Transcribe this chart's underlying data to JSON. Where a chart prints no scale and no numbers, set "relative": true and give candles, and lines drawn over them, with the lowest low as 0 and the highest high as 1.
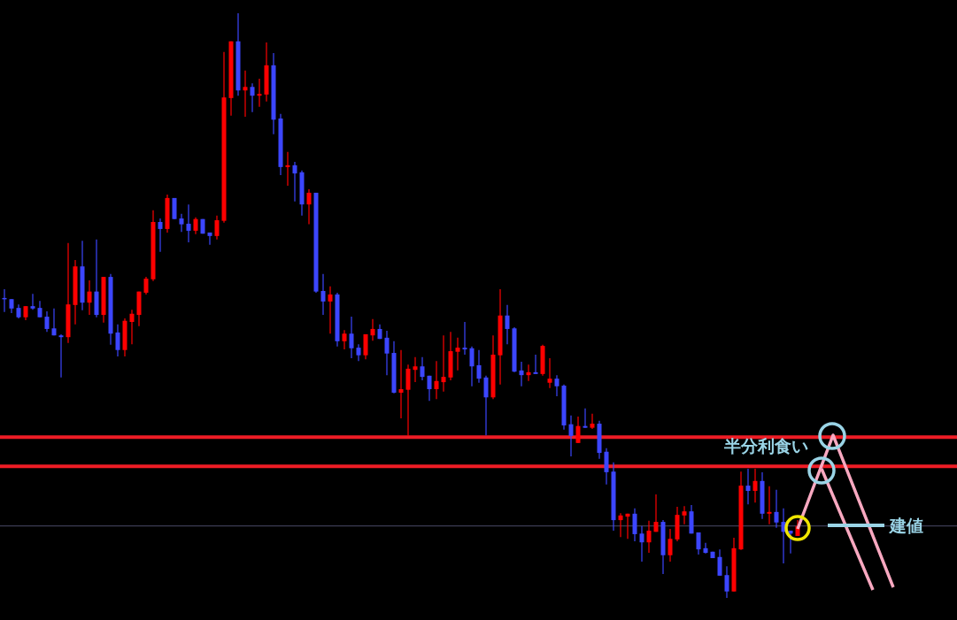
{
  "chart_data": {
    "type": "candlestick",
    "relative": true,
    "categories": [
      null,
      null,
      null,
      null,
      null,
      null,
      null,
      null,
      null,
      null,
      null,
      null,
      null,
      null,
      null,
      null,
      null,
      null,
      null,
      null,
      null,
      null,
      null,
      null,
      null,
      null,
      null,
      null,
      null,
      null,
      null,
      null,
      null,
      null,
      null,
      null,
      null,
      null,
      null,
      null,
      null,
      null,
      null,
      null,
      null,
      null,
      null,
      null,
      null,
      null,
      null,
      null,
      null,
      null,
      null,
      null,
      null,
      null,
      null,
      null,
      null,
      null,
      null,
      null,
      null,
      null,
      null,
      null,
      null,
      null,
      null,
      null,
      null,
      null,
      null,
      null,
      null,
      null,
      null,
      null,
      null,
      null,
      null,
      null,
      null,
      null,
      null,
      null,
      null,
      null,
      null,
      null,
      null,
      null,
      null,
      null,
      null,
      null,
      null,
      null,
      null,
      null,
      null,
      null,
      null,
      null,
      null,
      null,
      null,
      null,
      null,
      null,
      null
    ],
    "ohlc": [
      [
        0.513,
        0.528,
        0.489,
        0.511
      ],
      [
        0.511,
        0.511,
        0.487,
        0.495
      ],
      [
        0.496,
        0.502,
        0.478,
        0.48
      ],
      [
        0.48,
        0.499,
        0.475,
        0.499
      ],
      [
        0.499,
        0.52,
        0.493,
        0.495
      ],
      [
        0.496,
        0.508,
        0.48,
        0.48
      ],
      [
        0.481,
        0.49,
        0.455,
        0.46
      ],
      [
        0.461,
        0.495,
        0.449,
        0.449
      ],
      [
        0.449,
        0.451,
        0.377,
        0.446
      ],
      [
        0.446,
        0.607,
        0.436,
        0.502
      ],
      [
        0.501,
        0.578,
        0.468,
        0.567
      ],
      [
        0.567,
        0.611,
        0.492,
        0.505
      ],
      [
        0.505,
        0.543,
        0.484,
        0.524
      ],
      [
        0.524,
        0.613,
        0.48,
        0.484
      ],
      [
        0.484,
        0.549,
        0.471,
        0.549
      ],
      [
        0.549,
        0.554,
        0.433,
        0.452
      ],
      [
        0.454,
        0.468,
        0.413,
        0.424
      ],
      [
        0.424,
        0.478,
        0.413,
        0.474
      ],
      [
        0.472,
        0.493,
        0.434,
        0.486
      ],
      [
        0.484,
        0.524,
        0.465,
        0.524
      ],
      [
        0.522,
        0.549,
        0.519,
        0.546
      ],
      [
        0.545,
        0.663,
        0.542,
        0.643
      ],
      [
        0.643,
        0.649,
        0.592,
        0.631
      ],
      [
        0.631,
        0.69,
        0.625,
        0.684
      ],
      [
        0.684,
        0.684,
        0.648,
        0.648
      ],
      [
        0.649,
        0.657,
        0.626,
        0.639
      ],
      [
        0.64,
        0.673,
        0.608,
        0.628
      ],
      [
        0.628,
        0.651,
        0.622,
        0.648
      ],
      [
        0.648,
        0.648,
        0.623,
        0.623
      ],
      [
        0.625,
        0.625,
        0.604,
        0.619
      ],
      [
        0.619,
        0.654,
        0.613,
        0.646
      ],
      [
        0.645,
        0.934,
        0.642,
        0.856
      ],
      [
        0.855,
        0.952,
        0.825,
        0.952
      ],
      [
        0.952,
        1,
        0.859,
        0.868
      ],
      [
        0.868,
        0.902,
        0.823,
        0.874
      ],
      [
        0.874,
        0.88,
        0.831,
        0.859
      ],
      [
        0.859,
        0.888,
        0.84,
        0.862
      ],
      [
        0.861,
        0.95,
        0.849,
        0.911
      ],
      [
        0.911,
        0.932,
        0.793,
        0.818
      ],
      [
        0.82,
        0.828,
        0.723,
        0.737
      ],
      [
        0.737,
        0.763,
        0.705,
        0.74
      ],
      [
        0.74,
        0.746,
        0.678,
        0.726
      ],
      [
        0.728,
        0.731,
        0.654,
        0.673
      ],
      [
        0.673,
        0.699,
        0.639,
        0.693
      ],
      [
        0.693,
        0.693,
        0.522,
        0.524
      ],
      [
        0.525,
        0.554,
        0.484,
        0.507
      ],
      [
        0.507,
        0.533,
        0.452,
        0.519
      ],
      [
        0.519,
        0.522,
        0.43,
        0.439
      ],
      [
        0.439,
        0.458,
        0.425,
        0.452
      ],
      [
        0.452,
        0.481,
        0.41,
        0.427
      ],
      [
        0.428,
        0.434,
        0.405,
        0.415
      ],
      [
        0.415,
        0.451,
        0.408,
        0.451
      ],
      [
        0.449,
        0.477,
        0.44,
        0.46
      ],
      [
        0.46,
        0.468,
        0.443,
        0.443
      ],
      [
        0.445,
        0.457,
        0.381,
        0.418
      ],
      [
        0.419,
        0.439,
        0.35,
        0.351
      ],
      [
        0.351,
        0.424,
        0.307,
        0.357
      ],
      [
        0.356,
        0.399,
        0.277,
        0.392
      ],
      [
        0.39,
        0.412,
        0.369,
        0.396
      ],
      [
        0.396,
        0.412,
        0.372,
        0.378
      ],
      [
        0.38,
        0.38,
        0.337,
        0.357
      ],
      [
        0.357,
        0.405,
        0.34,
        0.371
      ],
      [
        0.369,
        0.449,
        0.353,
        0.378
      ],
      [
        0.377,
        0.455,
        0.372,
        0.422
      ],
      [
        0.421,
        0.445,
        0.389,
        0.428
      ],
      [
        0.428,
        0.472,
        0.416,
        0.425
      ],
      [
        0.427,
        0.43,
        0.362,
        0.396
      ],
      [
        0.398,
        0.424,
        0.368,
        0.375
      ],
      [
        0.377,
        0.38,
        0.278,
        0.343
      ],
      [
        0.343,
        0.449,
        0.34,
        0.416
      ],
      [
        0.415,
        0.528,
        0.365,
        0.483
      ],
      [
        0.483,
        0.501,
        0.434,
        0.46
      ],
      [
        0.461,
        0.463,
        0.386,
        0.387
      ],
      [
        0.389,
        0.404,
        0.362,
        0.381
      ],
      [
        0.381,
        0.399,
        0.371,
        0.386
      ],
      [
        0.386,
        0.416,
        0.383,
        0.383
      ],
      [
        0.383,
        0.433,
        0.38,
        0.431
      ],
      [
        0.368,
        0.41,
        0.359,
        0.375
      ],
      [
        0.375,
        0.381,
        0.345,
        0.362
      ],
      [
        0.363,
        0.365,
        0.288,
        0.295
      ],
      [
        0.297,
        0.312,
        0.242,
        0.277
      ],
      [
        0.265,
        0.31,
        0.265,
        0.294
      ],
      [
        0.294,
        0.324,
        0.291,
        0.291
      ],
      [
        0.291,
        0.315,
        0.289,
        0.298
      ],
      [
        0.298,
        0.303,
        0.238,
        0.248
      ],
      [
        0.25,
        0.256,
        0.194,
        0.215
      ],
      [
        0.216,
        0.232,
        0.115,
        0.133
      ],
      [
        0.133,
        0.145,
        0.104,
        0.141
      ],
      [
        0.139,
        0.144,
        0.101,
        0.144
      ],
      [
        0.144,
        0.153,
        0.097,
        0.109
      ],
      [
        0.11,
        0.123,
        0.062,
        0.095
      ],
      [
        0.095,
        0.132,
        0.077,
        0.115
      ],
      [
        0.113,
        0.177,
        0.113,
        0.13
      ],
      [
        0.13,
        0.133,
        0.041,
        0.073
      ],
      [
        0.073,
        0.118,
        0.062,
        0.101
      ],
      [
        0.1,
        0.156,
        0.097,
        0.142
      ],
      [
        0.141,
        0.157,
        0.126,
        0.148
      ],
      [
        0.148,
        0.159,
        0.11,
        0.11
      ],
      [
        0.112,
        0.112,
        0.074,
        0.083
      ],
      [
        0.085,
        0.094,
        0.076,
        0.077
      ],
      [
        0.079,
        0.079,
        0.068,
        0.068
      ],
      [
        0.07,
        0.083,
        0.038,
        0.038
      ],
      [
        0.039,
        0.054,
        0,
        0.011
      ],
      [
        0.011,
        0.103,
        0.011,
        0.085
      ],
      [
        0.083,
        0.216,
        0.082,
        0.192
      ],
      [
        0.192,
        0.221,
        0.16,
        0.183
      ],
      [
        0.183,
        0.221,
        0.163,
        0.2
      ],
      [
        0.2,
        0.215,
        0.135,
        0.144
      ],
      [
        0.144,
        0.191,
        0.126,
        0.147
      ],
      [
        0.147,
        0.185,
        0.12,
        0.129
      ],
      [
        0.13,
        0.153,
        0.059,
        0.113
      ],
      [
        0.115,
        0.115,
        0.076,
        0.11
      ],
      [
        0.106,
        0.133,
        0.106,
        0.123
      ]
    ],
    "colors": [
      "#3c46ff",
      "#3c46ff",
      "#3c46ff",
      "#ff0000",
      "#3c46ff",
      "#3c46ff",
      "#3c46ff",
      "#3c46ff",
      "#3c46ff",
      "#ff0000",
      "#ff0000",
      "#3c46ff",
      "#ff0000",
      "#3c46ff",
      "#ff0000",
      "#3c46ff",
      "#3c46ff",
      "#ff0000",
      "#ff0000",
      "#ff0000",
      "#ff0000",
      "#ff0000",
      "#3c46ff",
      "#ff0000",
      "#3c46ff",
      "#3c46ff",
      "#3c46ff",
      "#ff0000",
      "#3c46ff",
      "#3c46ff",
      "#ff0000",
      "#ff0000",
      "#ff0000",
      "#3c46ff",
      "#ff0000",
      "#3c46ff",
      "#ff0000",
      "#ff0000",
      "#3c46ff",
      "#3c46ff",
      "#ff0000",
      "#3c46ff",
      "#3c46ff",
      "#ff0000",
      "#3c46ff",
      "#3c46ff",
      "#ff0000",
      "#3c46ff",
      "#ff0000",
      "#3c46ff",
      "#3c46ff",
      "#ff0000",
      "#ff0000",
      "#3c46ff",
      "#3c46ff",
      "#3c46ff",
      "#ff0000",
      "#ff0000",
      "#ff0000",
      "#3c46ff",
      "#3c46ff",
      "#ff0000",
      "#ff0000",
      "#ff0000",
      "#ff0000",
      "#3c46ff",
      "#3c46ff",
      "#3c46ff",
      "#3c46ff",
      "#ff0000",
      "#ff0000",
      "#3c46ff",
      "#3c46ff",
      "#3c46ff",
      "#ff0000",
      "#3c46ff",
      "#ff0000",
      "#ff0000",
      "#3c46ff",
      "#3c46ff",
      "#3c46ff",
      "#ff0000",
      "#3c46ff",
      "#ff0000",
      "#3c46ff",
      "#3c46ff",
      "#3c46ff",
      "#ff0000",
      "#ff0000",
      "#3c46ff",
      "#3c46ff",
      "#ff0000",
      "#ff0000",
      "#3c46ff",
      "#ff0000",
      "#ff0000",
      "#ff0000",
      "#3c46ff",
      "#3c46ff",
      "#3c46ff",
      "#3c46ff",
      "#3c46ff",
      "#3c46ff",
      "#ff0000",
      "#ff0000",
      "#3c46ff",
      "#ff0000",
      "#3c46ff",
      "#ff0000",
      "#3c46ff",
      "#3c46ff",
      "#3c46ff",
      "#ff0000"
    ],
    "ref_lines": [
      {
        "axis": "y",
        "value": 0.275,
        "color": "#ee1c25"
      },
      {
        "axis": "y",
        "value": 0.225,
        "color": "#ee1c25"
      },
      {
        "axis": "y",
        "value": 0.123,
        "color": "#4a4a68"
      }
    ],
    "annotations": [
      "半分利食い",
      "建値"
    ]
  }
}
